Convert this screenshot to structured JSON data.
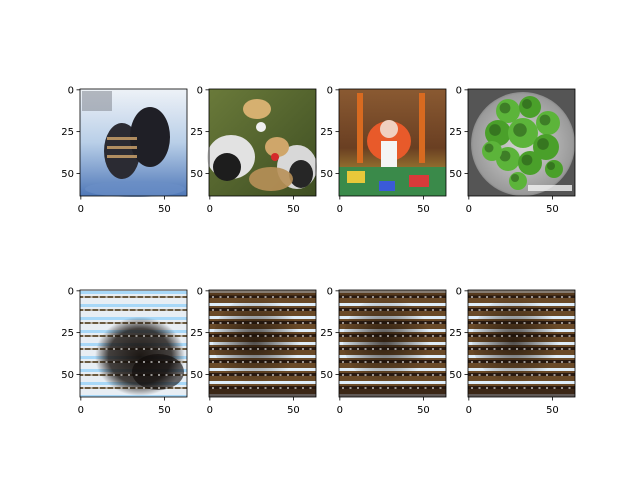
{
  "chart_data": {
    "type": "image-grid",
    "rows": 2,
    "cols": 4,
    "axis_spec": {
      "xlim": [
        -0.5,
        63.5
      ],
      "ylim_inverted": [
        63.5,
        -0.5
      ],
      "xticks": [
        0,
        50
      ],
      "yticks": [
        0,
        25,
        50
      ],
      "xtick_labels": [
        "0",
        "50"
      ],
      "ytick_labels": [
        "0",
        "25",
        "50"
      ]
    },
    "panels": [
      {
        "row": 0,
        "col": 0,
        "content": "photo: pair of dark sandals on blue-white surface",
        "palette": [
          "#cfe0f2",
          "#2b2b33",
          "#6b8fc6",
          "#f2f5fa"
        ]
      },
      {
        "row": 0,
        "col": 1,
        "content": "photo: two crowned cranes on grass",
        "palette": [
          "#4a5a2c",
          "#e8e8e8",
          "#1d1d1d",
          "#c8a064"
        ]
      },
      {
        "row": 0,
        "col": 2,
        "content": "photo: toddler in orange baby swing on colorful play mat",
        "palette": [
          "#7a4a2a",
          "#e85a2a",
          "#3a8a4a",
          "#e8c83a"
        ]
      },
      {
        "row": 0,
        "col": 3,
        "content": "photo: broccoli in a metal pot",
        "palette": [
          "#4aa02a",
          "#2a5a1a",
          "#b4b4b4",
          "#2a2a2a"
        ]
      },
      {
        "row": 1,
        "col": 0,
        "content": "generated: light striped pattern with dark center blob",
        "palette": [
          "#f0f4f8",
          "#1a1410",
          "#a8d8f8",
          "#5a4a30"
        ]
      },
      {
        "row": 1,
        "col": 1,
        "content": "generated: brown/dark striped pattern",
        "palette": [
          "#3a2818",
          "#c8a060",
          "#dcecf8",
          "#7a5a30"
        ]
      },
      {
        "row": 1,
        "col": 2,
        "content": "generated: brown/dark striped pattern",
        "palette": [
          "#3a2818",
          "#c8a060",
          "#dcecf8",
          "#7a5a30"
        ]
      },
      {
        "row": 1,
        "col": 3,
        "content": "generated: brown/dark striped pattern",
        "palette": [
          "#3a2818",
          "#c8a060",
          "#dcecf8",
          "#7a5a30"
        ]
      }
    ]
  }
}
